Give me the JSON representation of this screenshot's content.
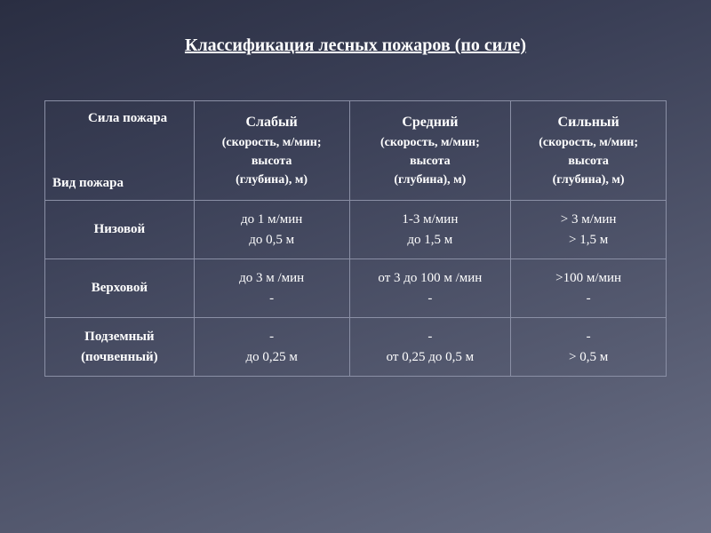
{
  "title": "Классификация лесных пожаров (по силе)",
  "table": {
    "headers": {
      "corner_top": "Сила пожара",
      "corner_bottom": "Вид пожара",
      "col1_main": "Слабый",
      "col1_sub1": "(скорость, м/мин;",
      "col1_sub2": "высота",
      "col1_sub3": "(глубина), м)",
      "col2_main": "Средний",
      "col2_sub1": "(скорость, м/мин;",
      "col2_sub2": "высота",
      "col2_sub3": "(глубина), м)",
      "col3_main": "Сильный",
      "col3_sub1": "(скорость, м/мин;",
      "col3_sub2": "высота",
      "col3_sub3": "(глубина), м)"
    },
    "rows": [
      {
        "label": "Низовой",
        "c1a": "до 1 м/мин",
        "c1b": "до 0,5 м",
        "c2a": "1-3 м/мин",
        "c2b": "до 1,5 м",
        "c3a": "> 3 м/мин",
        "c3b": "> 1,5 м"
      },
      {
        "label": "Верховой",
        "c1a": "до 3 м /мин",
        "c1b": "-",
        "c2a": "от 3 до 100 м /мин",
        "c2b": "-",
        "c3a": ">100 м/мин",
        "c3b": "-"
      },
      {
        "label": "Подземный",
        "label2": "(почвенный)",
        "c1a": "-",
        "c1b": "до 0,25 м",
        "c2a": "-",
        "c2b": "от 0,25 до 0,5 м",
        "c3a": "-",
        "c3b": "> 0,5 м"
      }
    ]
  },
  "colors": {
    "border": "#8a8fa5",
    "text": "#ffffff"
  }
}
